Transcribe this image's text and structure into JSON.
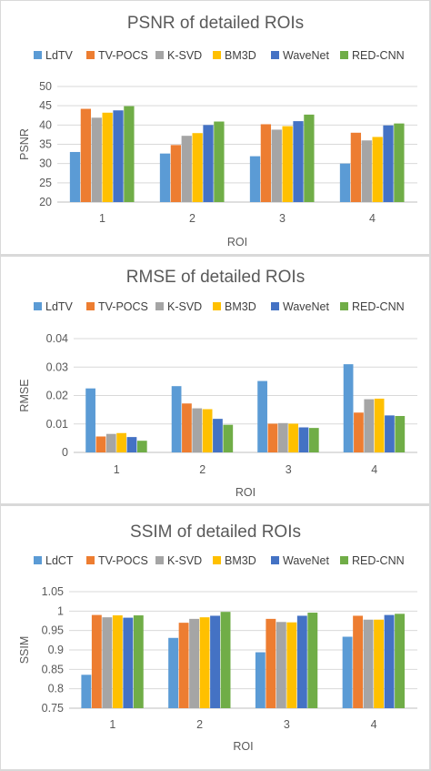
{
  "chart_data": [
    {
      "type": "bar",
      "title": "PSNR of detailed ROIs",
      "xlabel": "ROI",
      "ylabel": "PSNR",
      "categories": [
        "1",
        "2",
        "3",
        "4"
      ],
      "ylim": [
        20,
        50
      ],
      "yticks": [
        "20",
        "25",
        "30",
        "35",
        "40",
        "45",
        "50"
      ],
      "grid": true,
      "legend_position": "top",
      "series": [
        {
          "name": "LdTV",
          "color": "#5b9bd5",
          "values": [
            33.0,
            32.6,
            31.9,
            30.0
          ]
        },
        {
          "name": "TV-POCS",
          "color": "#ed7d31",
          "values": [
            44.2,
            34.8,
            40.2,
            38.0
          ]
        },
        {
          "name": "K-SVD",
          "color": "#a5a5a5",
          "values": [
            41.9,
            37.2,
            38.8,
            36.0
          ]
        },
        {
          "name": "BM3D",
          "color": "#ffc000",
          "values": [
            43.2,
            37.9,
            39.7,
            36.9
          ]
        },
        {
          "name": "WaveNet",
          "color": "#4472c4",
          "values": [
            43.8,
            40.0,
            41.0,
            39.9
          ]
        },
        {
          "name": "RED-CNN",
          "color": "#70ad47",
          "values": [
            44.9,
            40.9,
            42.7,
            40.4
          ]
        }
      ]
    },
    {
      "type": "bar",
      "title": "RMSE of detailed ROIs",
      "xlabel": "ROI",
      "ylabel": "RMSE",
      "categories": [
        "1",
        "2",
        "3",
        "4"
      ],
      "ylim": [
        0,
        0.04
      ],
      "yticks": [
        "0",
        "0.01",
        "0.02",
        "0.03",
        "0.04"
      ],
      "grid": true,
      "legend_position": "top",
      "series": [
        {
          "name": "LdTV",
          "color": "#5b9bd5",
          "values": [
            0.0225,
            0.0233,
            0.0251,
            0.031
          ]
        },
        {
          "name": "TV-POCS",
          "color": "#ed7d31",
          "values": [
            0.0056,
            0.0172,
            0.0101,
            0.014
          ]
        },
        {
          "name": "K-SVD",
          "color": "#a5a5a5",
          "values": [
            0.0065,
            0.0155,
            0.0103,
            0.0187
          ]
        },
        {
          "name": "BM3D",
          "color": "#ffc000",
          "values": [
            0.0068,
            0.0152,
            0.0101,
            0.0189
          ]
        },
        {
          "name": "WaveNet",
          "color": "#4472c4",
          "values": [
            0.0054,
            0.0118,
            0.0088,
            0.013
          ]
        },
        {
          "name": "RED-CNN",
          "color": "#70ad47",
          "values": [
            0.0041,
            0.0097,
            0.0086,
            0.0128
          ]
        }
      ]
    },
    {
      "type": "bar",
      "title": "SSIM of detailed ROIs",
      "xlabel": "ROI",
      "ylabel": "SSIM",
      "categories": [
        "1",
        "2",
        "3",
        "4"
      ],
      "ylim": [
        0.75,
        1.05
      ],
      "yticks": [
        "0.75",
        "0.8",
        "0.85",
        "0.9",
        "0.95",
        "1",
        "1.05"
      ],
      "grid": true,
      "legend_position": "top",
      "series": [
        {
          "name": "LdCT",
          "color": "#5b9bd5",
          "values": [
            0.836,
            0.931,
            0.894,
            0.934
          ]
        },
        {
          "name": "TV-POCS",
          "color": "#ed7d31",
          "values": [
            0.99,
            0.97,
            0.98,
            0.988
          ]
        },
        {
          "name": "K-SVD",
          "color": "#a5a5a5",
          "values": [
            0.984,
            0.98,
            0.972,
            0.978
          ]
        },
        {
          "name": "BM3D",
          "color": "#ffc000",
          "values": [
            0.989,
            0.984,
            0.971,
            0.978
          ]
        },
        {
          "name": "WaveNet",
          "color": "#4472c4",
          "values": [
            0.983,
            0.988,
            0.988,
            0.99
          ]
        },
        {
          "name": "RED-CNN",
          "color": "#70ad47",
          "values": [
            0.989,
            0.998,
            0.996,
            0.993
          ]
        }
      ]
    }
  ]
}
